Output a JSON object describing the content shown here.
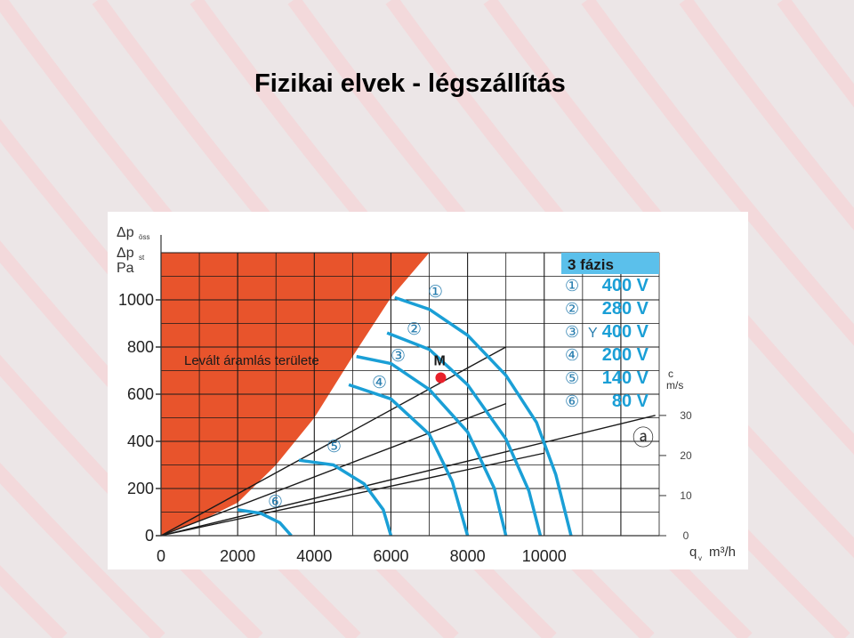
{
  "slide": {
    "title": "Fizikai elvek - légszállítás"
  },
  "colors": {
    "background": "#ece6e7",
    "stripes": "#f6d3d5",
    "stall_region": "#e8542c",
    "curve": "#1a9fd6",
    "grid": "#1a1a1a",
    "legend_header": "#5bc0eb",
    "legend_value": "#1a9fd6",
    "point_m": "#e8202a"
  },
  "chart_data": {
    "type": "line",
    "xlabel": "q",
    "xlabel_sub": "v",
    "xlabel_unit": "m³/h",
    "ylabel_lines": [
      "Δp",
      "Δp",
      "Pa"
    ],
    "ylabel_subs": [
      "öss",
      "st",
      ""
    ],
    "xlim": [
      0,
      13000
    ],
    "ylim": [
      0,
      1200
    ],
    "x_ticks": [
      0,
      2000,
      4000,
      6000,
      8000,
      10000
    ],
    "x_tick_labels": [
      "0",
      "2000",
      "4000",
      "6000",
      "8000",
      "10000"
    ],
    "y_ticks": [
      0,
      200,
      400,
      600,
      800,
      1000
    ],
    "y_tick_labels": [
      "0",
      "200",
      "400",
      "600",
      "800",
      "1000"
    ],
    "right_axis": {
      "label_top": "c",
      "label_unit": "m/s",
      "ticks": [
        "30",
        "20",
        "10",
        "0"
      ],
      "tick_y_pa": [
        510,
        340,
        170,
        0
      ]
    },
    "stall_region": {
      "label": "Levált áramlás területe",
      "boundary": [
        [
          0,
          0
        ],
        [
          1000,
          60
        ],
        [
          2000,
          140
        ],
        [
          3000,
          300
        ],
        [
          4000,
          500
        ],
        [
          5000,
          760
        ],
        [
          6000,
          1010
        ],
        [
          7000,
          1200
        ]
      ]
    },
    "series": [
      {
        "name": "400 V",
        "symbol": "①",
        "points": [
          [
            6100,
            1010
          ],
          [
            7000,
            960
          ],
          [
            8000,
            850
          ],
          [
            9000,
            680
          ],
          [
            9800,
            480
          ],
          [
            10300,
            260
          ],
          [
            10700,
            0
          ]
        ]
      },
      {
        "name": "280 V",
        "symbol": "②",
        "points": [
          [
            5900,
            860
          ],
          [
            7000,
            790
          ],
          [
            8000,
            640
          ],
          [
            9000,
            410
          ],
          [
            9600,
            190
          ],
          [
            9900,
            0
          ]
        ]
      },
      {
        "name": "400 V",
        "symbol": "③",
        "prefix": "Y",
        "points": [
          [
            5100,
            760
          ],
          [
            6000,
            730
          ],
          [
            7000,
            620
          ],
          [
            8000,
            440
          ],
          [
            8700,
            200
          ],
          [
            9000,
            0
          ]
        ]
      },
      {
        "name": "200 V",
        "symbol": "④",
        "points": [
          [
            4900,
            640
          ],
          [
            6000,
            580
          ],
          [
            7000,
            430
          ],
          [
            7600,
            230
          ],
          [
            8000,
            0
          ]
        ]
      },
      {
        "name": "140 V",
        "symbol": "⑤",
        "points": [
          [
            3600,
            320
          ],
          [
            4500,
            300
          ],
          [
            5300,
            220
          ],
          [
            5800,
            110
          ],
          [
            6000,
            0
          ]
        ]
      },
      {
        "name": "80 V",
        "symbol": "⑥",
        "points": [
          [
            2000,
            110
          ],
          [
            2600,
            95
          ],
          [
            3100,
            55
          ],
          [
            3400,
            0
          ]
        ]
      }
    ],
    "system_lines": [
      {
        "points": [
          [
            0,
            0
          ],
          [
            9000,
            800
          ]
        ]
      },
      {
        "points": [
          [
            0,
            0
          ],
          [
            9000,
            560
          ]
        ]
      },
      {
        "points": [
          [
            0,
            0
          ],
          [
            10000,
            350
          ]
        ]
      },
      {
        "points": [
          [
            0,
            0
          ],
          [
            12900,
            510
          ]
        ]
      }
    ],
    "system_label": "ⓐ",
    "operating_point": {
      "label": "M",
      "x": 7300,
      "y": 670
    },
    "legend": {
      "title": "3 fázis",
      "entries": [
        {
          "symbol": "①",
          "prefix": "",
          "value": "400 V"
        },
        {
          "symbol": "②",
          "prefix": "",
          "value": "280 V"
        },
        {
          "symbol": "③",
          "prefix": "Y",
          "value": "400 V"
        },
        {
          "symbol": "④",
          "prefix": "",
          "value": "200 V"
        },
        {
          "symbol": "⑤",
          "prefix": "",
          "value": "140 V"
        },
        {
          "symbol": "⑥",
          "prefix": "",
          "value": "80 V"
        }
      ]
    }
  }
}
